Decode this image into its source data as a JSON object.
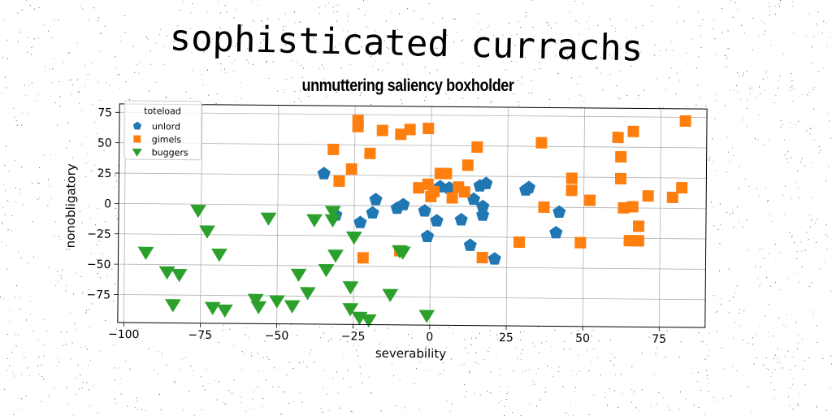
{
  "chart_data": {
    "type": "scatter",
    "title": "sophisticated currachs",
    "subtitle": "unmuttering saliency boxholder",
    "xlabel": "severability",
    "ylabel": "nonobligatory",
    "xlim": [
      -102,
      90
    ],
    "ylim": [
      -98,
      82
    ],
    "xticks": [
      -100,
      -75,
      -50,
      -25,
      0,
      25,
      50,
      75
    ],
    "yticks": [
      75,
      50,
      25,
      0,
      -25,
      -50,
      -75
    ],
    "grid": true,
    "legend": {
      "title": "toteload",
      "placement": "top-left"
    },
    "series": [
      {
        "name": "unlord",
        "marker": "pentagon",
        "color": "#1f77b4",
        "points": [
          [
            -35,
            26
          ],
          [
            -31,
            -8
          ],
          [
            -23,
            -14
          ],
          [
            -19,
            -6
          ],
          [
            -18,
            5
          ],
          [
            -11,
            -2
          ],
          [
            -9,
            1
          ],
          [
            -2,
            -4
          ],
          [
            -1,
            -25
          ],
          [
            2,
            -12
          ],
          [
            3,
            16
          ],
          [
            6,
            15
          ],
          [
            10,
            -11
          ],
          [
            13,
            -32
          ],
          [
            14,
            6
          ],
          [
            16,
            17
          ],
          [
            17,
            0
          ],
          [
            17,
            -7
          ],
          [
            18,
            19
          ],
          [
            21,
            -43
          ],
          [
            31,
            14
          ],
          [
            32,
            16
          ],
          [
            41,
            -21
          ],
          [
            42,
            -4
          ]
        ]
      },
      {
        "name": "gimels",
        "marker": "square",
        "color": "#ff7f0e",
        "points": [
          [
            -32,
            46
          ],
          [
            -30,
            20
          ],
          [
            -26,
            30
          ],
          [
            -24,
            70
          ],
          [
            -24,
            65
          ],
          [
            -22,
            -43
          ],
          [
            -20,
            43
          ],
          [
            -16,
            62
          ],
          [
            -10,
            59
          ],
          [
            -7,
            63
          ],
          [
            -10,
            -37
          ],
          [
            -4,
            15
          ],
          [
            -1,
            64
          ],
          [
            -1,
            18
          ],
          [
            0,
            8
          ],
          [
            1,
            12
          ],
          [
            3,
            27
          ],
          [
            5,
            27
          ],
          [
            7,
            7
          ],
          [
            9,
            16
          ],
          [
            11,
            12
          ],
          [
            12,
            34
          ],
          [
            15,
            49
          ],
          [
            17,
            -42
          ],
          [
            29,
            -29
          ],
          [
            36,
            53
          ],
          [
            37,
            0
          ],
          [
            46,
            24
          ],
          [
            46,
            14
          ],
          [
            49,
            -29
          ],
          [
            52,
            6
          ],
          [
            61,
            58
          ],
          [
            62,
            42
          ],
          [
            62,
            24
          ],
          [
            63,
            0
          ],
          [
            65,
            -27
          ],
          [
            66,
            1
          ],
          [
            66,
            63
          ],
          [
            67,
            -27
          ],
          [
            68,
            -15
          ],
          [
            68,
            -27
          ],
          [
            71,
            10
          ],
          [
            79,
            9
          ],
          [
            82,
            17
          ],
          [
            83,
            72
          ]
        ]
      },
      {
        "name": "buggers",
        "marker": "triangle-down",
        "color": "#2ca02c",
        "points": [
          [
            -93,
            -40
          ],
          [
            -86,
            -56
          ],
          [
            -82,
            -58
          ],
          [
            -84,
            -83
          ],
          [
            -76,
            -5
          ],
          [
            -73,
            -22
          ],
          [
            -71,
            -85
          ],
          [
            -69,
            -41
          ],
          [
            -67,
            -87
          ],
          [
            -57,
            -78
          ],
          [
            -56,
            -84
          ],
          [
            -53,
            -11
          ],
          [
            -50,
            -79
          ],
          [
            -45,
            -83
          ],
          [
            -43,
            -57
          ],
          [
            -40,
            -72
          ],
          [
            -38,
            -12
          ],
          [
            -34,
            -53
          ],
          [
            -32,
            -5
          ],
          [
            -32,
            -12
          ],
          [
            -31,
            -41
          ],
          [
            -26,
            -85
          ],
          [
            -25,
            -26
          ],
          [
            -26,
            -67
          ],
          [
            -23,
            -92
          ],
          [
            -20,
            -94
          ],
          [
            -13,
            -73
          ],
          [
            -10,
            -37
          ],
          [
            -9,
            -38
          ],
          [
            -1,
            -90
          ]
        ]
      }
    ]
  }
}
